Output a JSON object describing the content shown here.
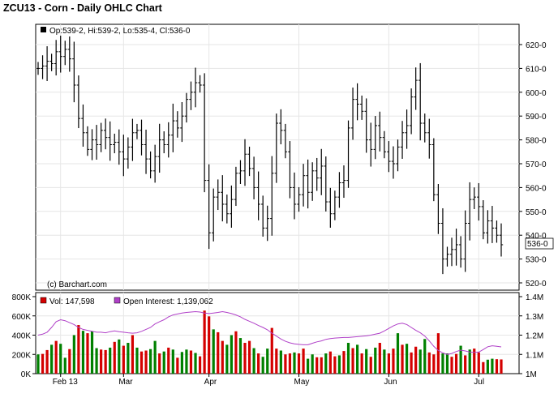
{
  "title": "ZCU13 - Corn - Daily OHLC Chart",
  "price_legend": "Op:539-2, Hi:539-2, Lo:535-4, Cl:536-0",
  "last_price_label": "536-0",
  "credit": "(c) Barchart.com",
  "volume_legend": "Vol: 147,598",
  "oi_legend": "Open Interest: 1,139,062",
  "colors": {
    "background": "#ffffff",
    "frame": "#000000",
    "grid": "#e6e6e6",
    "volume_up": "#008000",
    "volume_down": "#d40000",
    "open_interest": "#b040c8",
    "bars": "#000000"
  },
  "chart_data": [
    {
      "type": "ohlc",
      "title": "ZCU13 - Corn - Daily OHLC Chart",
      "x_tick_labels": [
        "Feb 13",
        "Mar",
        "Apr",
        "May",
        "Jun",
        "Jul"
      ],
      "y_tick_labels": [
        "520-0",
        "530-0",
        "540-0",
        "550-0",
        "560-0",
        "570-0",
        "580-0",
        "590-0",
        "600-0",
        "610-0",
        "620-0"
      ],
      "ylim": [
        516,
        625
      ],
      "grid": true,
      "last": {
        "open": 539.25,
        "high": 539.25,
        "low": 535.5,
        "close": 536.0
      },
      "series": [
        {
          "name": "ZCU13",
          "close": [
            610,
            611,
            613,
            612,
            617,
            615,
            618,
            614,
            603,
            589,
            583,
            576,
            580,
            578,
            584,
            581,
            578,
            579,
            575,
            572,
            577,
            583,
            584,
            578,
            572,
            567,
            573,
            580,
            578,
            582,
            588,
            585,
            590,
            597,
            600,
            604,
            603,
            563,
            541,
            556,
            558,
            553,
            549,
            555,
            566,
            567,
            574,
            568,
            560,
            553,
            543,
            547,
            566,
            587,
            584,
            575,
            560,
            553,
            557,
            565,
            558,
            567,
            564,
            569,
            554,
            549,
            556,
            562,
            563,
            585,
            597,
            595,
            592,
            580,
            576,
            586,
            581,
            575,
            571,
            570,
            577,
            583,
            586,
            598,
            605,
            587,
            583,
            578,
            557,
            545,
            530,
            532,
            534,
            536,
            530,
            545,
            555,
            556,
            552,
            541,
            546,
            543,
            540,
            536
          ],
          "high_low_ranges": "each bar ~6-20 points, plotted to match screenshot"
        }
      ]
    },
    {
      "type": "bar",
      "title": "",
      "series_name": "Vol",
      "y_tick_labels": [
        "0K",
        "200K",
        "400K",
        "600K",
        "800K"
      ],
      "ylim": [
        0,
        800000
      ],
      "values": [
        200000,
        205000,
        245000,
        300000,
        340000,
        310000,
        165000,
        255000,
        400000,
        505000,
        445000,
        420000,
        440000,
        265000,
        250000,
        245000,
        270000,
        330000,
        355000,
        290000,
        320000,
        400000,
        270000,
        230000,
        240000,
        255000,
        340000,
        210000,
        230000,
        270000,
        250000,
        165000,
        225000,
        250000,
        240000,
        215000,
        180000,
        655000,
        595000,
        460000,
        430000,
        340000,
        300000,
        400000,
        440000,
        370000,
        320000,
        340000,
        265000,
        210000,
        175000,
        260000,
        475000,
        260000,
        240000,
        200000,
        210000,
        220000,
        210000,
        260000,
        155000,
        200000,
        170000,
        170000,
        210000,
        230000,
        180000,
        190000,
        235000,
        320000,
        265000,
        300000,
        210000,
        255000,
        175000,
        270000,
        320000,
        250000,
        210000,
        260000,
        420000,
        300000,
        310000,
        220000,
        280000,
        250000,
        360000,
        220000,
        200000,
        420000,
        210000,
        210000,
        175000,
        205000,
        290000,
        190000,
        250000,
        260000,
        220000,
        120000,
        145000,
        155000,
        150000,
        147598
      ],
      "up_down": [
        1,
        0,
        0,
        1,
        0,
        1,
        1,
        0,
        1,
        0,
        1,
        0,
        1,
        1,
        0,
        0,
        1,
        0,
        1,
        0,
        1,
        0,
        1,
        0,
        0,
        1,
        1,
        0,
        1,
        0,
        1,
        0,
        1,
        1,
        0,
        1,
        0,
        0,
        0,
        1,
        0,
        0,
        1,
        1,
        0,
        1,
        0,
        0,
        1,
        0,
        1,
        1,
        0,
        0,
        1,
        0,
        0,
        1,
        0,
        0,
        1,
        1,
        0,
        0,
        1,
        0,
        0,
        1,
        0,
        1,
        0,
        1,
        0,
        1,
        0,
        1,
        0,
        1,
        0,
        0,
        1,
        0,
        1,
        0,
        0,
        1,
        1,
        0,
        0,
        0,
        1,
        1,
        0,
        0,
        1,
        0,
        1,
        0,
        0,
        0,
        1,
        1,
        0,
        0
      ]
    },
    {
      "type": "line",
      "title": "",
      "series_name": "Open Interest",
      "y_tick_labels": [
        "1M",
        "1.1M",
        "1.2M",
        "1.3M",
        "1.4M"
      ],
      "ylim": [
        1000000,
        1400000
      ],
      "values": [
        1200000,
        1205000,
        1215000,
        1240000,
        1270000,
        1280000,
        1275000,
        1265000,
        1255000,
        1240000,
        1230000,
        1225000,
        1220000,
        1215000,
        1215000,
        1212000,
        1218000,
        1222000,
        1218000,
        1215000,
        1212000,
        1210000,
        1212000,
        1220000,
        1230000,
        1240000,
        1258000,
        1270000,
        1280000,
        1295000,
        1305000,
        1310000,
        1315000,
        1318000,
        1320000,
        1322000,
        1320000,
        1315000,
        1312000,
        1315000,
        1318000,
        1322000,
        1318000,
        1312000,
        1305000,
        1295000,
        1282000,
        1272000,
        1262000,
        1250000,
        1240000,
        1228000,
        1210000,
        1195000,
        1180000,
        1168000,
        1160000,
        1155000,
        1152000,
        1150000,
        1150000,
        1158000,
        1165000,
        1170000,
        1178000,
        1182000,
        1185000,
        1186000,
        1188000,
        1188000,
        1190000,
        1192000,
        1194000,
        1196000,
        1200000,
        1205000,
        1210000,
        1222000,
        1235000,
        1248000,
        1258000,
        1262000,
        1255000,
        1240000,
        1225000,
        1212000,
        1195000,
        1170000,
        1142000,
        1120000,
        1108000,
        1100000,
        1105000,
        1115000,
        1122000,
        1118000,
        1112000,
        1110000,
        1112000,
        1125000,
        1140000,
        1145000,
        1142000,
        1139062
      ]
    }
  ]
}
